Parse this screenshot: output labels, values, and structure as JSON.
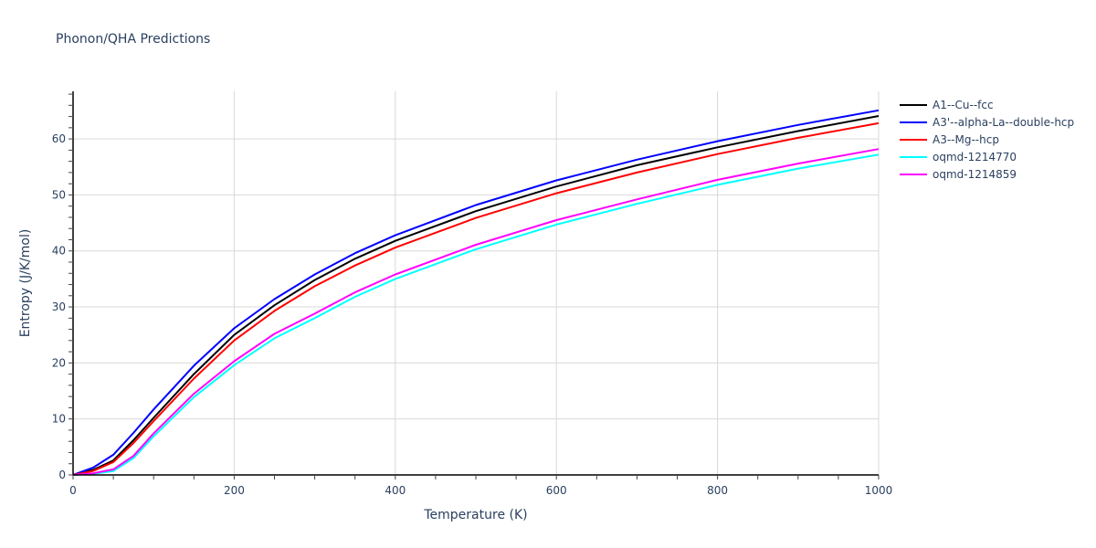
{
  "title": "Phonon/QHA Predictions",
  "chart_data": {
    "type": "line",
    "title": "Phonon/QHA Predictions",
    "xlabel": "Temperature (K)",
    "ylabel": "Entropy (J/K/mol)",
    "xlim": [
      0,
      1000
    ],
    "ylim": [
      0,
      68.5
    ],
    "grid": true,
    "legend_position": "right",
    "x_ticks": [
      0,
      200,
      400,
      600,
      800,
      1000
    ],
    "y_ticks": [
      0,
      10,
      20,
      30,
      40,
      50,
      60
    ],
    "x": [
      0,
      25,
      50,
      75,
      100,
      150,
      200,
      250,
      300,
      350,
      400,
      500,
      600,
      700,
      800,
      900,
      1000
    ],
    "series": [
      {
        "name": "A1--Cu--fcc",
        "color": "#000000",
        "values": [
          0,
          0.9,
          2.6,
          6.2,
          10.2,
          18.0,
          25.0,
          30.3,
          34.8,
          38.6,
          41.8,
          47.1,
          51.5,
          55.3,
          58.5,
          61.4,
          64.1
        ]
      },
      {
        "name": "A3'--alpha-La--double-hcp",
        "color": "#0000ff",
        "values": [
          0,
          1.3,
          3.6,
          7.5,
          11.7,
          19.5,
          26.2,
          31.4,
          35.8,
          39.6,
          42.8,
          48.2,
          52.6,
          56.3,
          59.6,
          62.5,
          65.1
        ]
      },
      {
        "name": "A3--Mg--hcp",
        "color": "#ff0000",
        "values": [
          0,
          0.7,
          2.3,
          5.7,
          9.6,
          17.2,
          24.0,
          29.3,
          33.7,
          37.4,
          40.6,
          45.9,
          50.3,
          54.0,
          57.3,
          60.2,
          62.8
        ]
      },
      {
        "name": "oqmd-1214770",
        "color": "#00ffff",
        "values": [
          0,
          0.2,
          0.7,
          3.0,
          6.9,
          13.9,
          19.6,
          24.4,
          28.0,
          31.8,
          35.0,
          40.3,
          44.7,
          48.4,
          51.8,
          54.7,
          57.2
        ]
      },
      {
        "name": "oqmd-1214859",
        "color": "#ff00ff",
        "values": [
          0,
          0.3,
          1.0,
          3.4,
          7.4,
          14.5,
          20.3,
          25.2,
          28.8,
          32.6,
          35.8,
          41.1,
          45.5,
          49.2,
          52.7,
          55.6,
          58.2
        ]
      }
    ]
  }
}
